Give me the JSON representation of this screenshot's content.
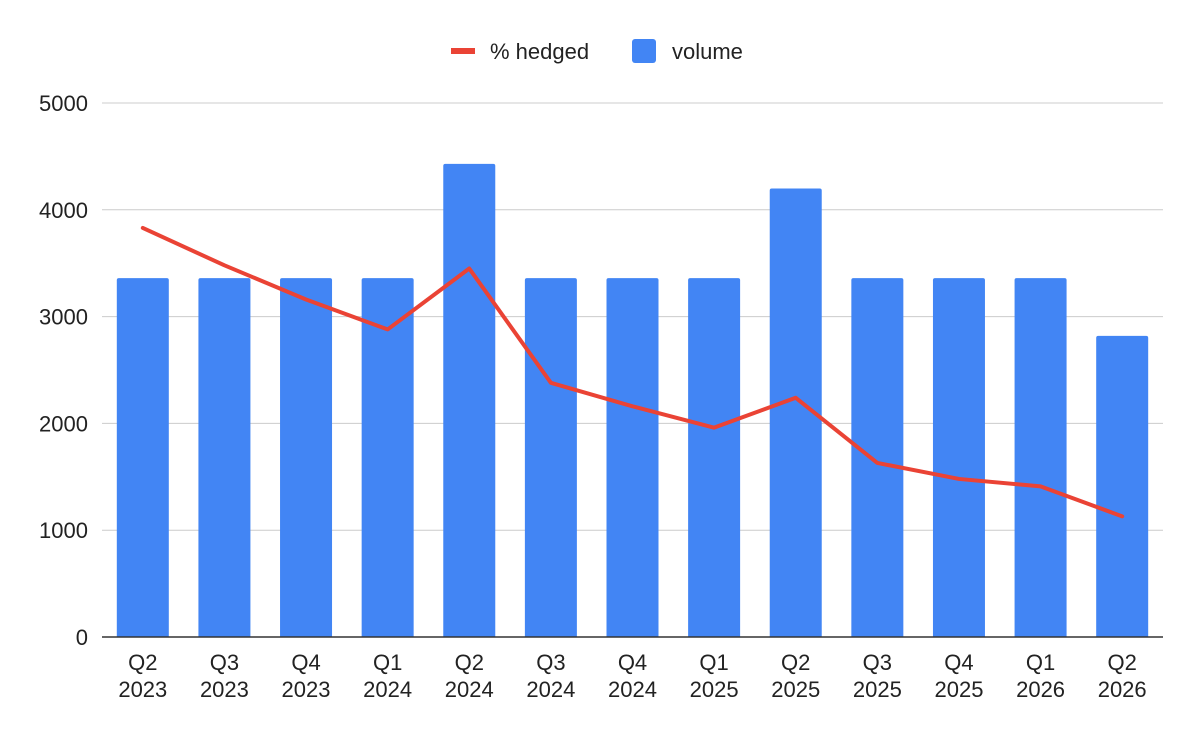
{
  "chart_data": {
    "type": "bar",
    "categories": [
      [
        "Q2",
        "2023"
      ],
      [
        "Q3",
        "2023"
      ],
      [
        "Q4",
        "2023"
      ],
      [
        "Q1",
        "2024"
      ],
      [
        "Q2",
        "2024"
      ],
      [
        "Q3",
        "2024"
      ],
      [
        "Q4",
        "2024"
      ],
      [
        "Q1",
        "2025"
      ],
      [
        "Q2",
        "2025"
      ],
      [
        "Q3",
        "2025"
      ],
      [
        "Q4",
        "2025"
      ],
      [
        "Q1",
        "2026"
      ],
      [
        "Q2",
        "2026"
      ]
    ],
    "series": [
      {
        "name": "volume",
        "type": "bar",
        "color": "#4285f4",
        "values": [
          3360,
          3360,
          3360,
          3360,
          4430,
          3360,
          3360,
          3360,
          4200,
          3360,
          3360,
          3360,
          2820
        ]
      },
      {
        "name": "% hedged",
        "type": "line",
        "color": "#ea4335",
        "values": [
          3830,
          3480,
          3160,
          2880,
          3450,
          2380,
          2160,
          1960,
          2240,
          1630,
          1480,
          1410,
          1130
        ]
      }
    ],
    "legend": {
      "position": "top",
      "entries": [
        "% hedged",
        "volume"
      ]
    },
    "yticks": [
      0,
      1000,
      2000,
      3000,
      4000,
      5000
    ],
    "ylim": [
      0,
      5000
    ],
    "grid": true,
    "title": "",
    "xlabel": "",
    "ylabel": ""
  }
}
